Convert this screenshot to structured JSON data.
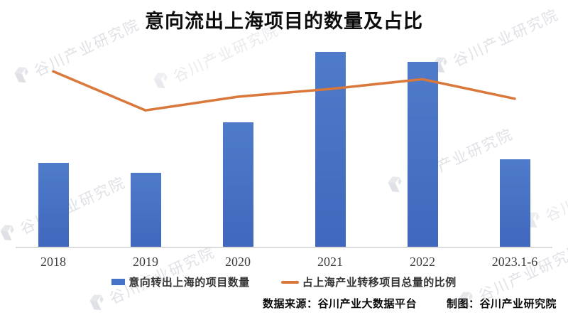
{
  "watermark": {
    "text": "谷川产业研究院",
    "logo_color": "#c9cdd6"
  },
  "footer": {
    "data_source": "数据来源：谷川产业大数据平台",
    "credit": "制图：谷川产业研究院"
  },
  "colors": {
    "bar": "#4472C4",
    "line": "#D9783A",
    "axis": "#DCDCDC",
    "watermark": "#C6CAD3",
    "title_text": "#0D0D0D",
    "xlabel_text": "#3F3F3F",
    "legend_text": "#333333"
  },
  "chart_data": {
    "type": "combo_bar_line",
    "title": "意向流出上海项目的数量及占比",
    "categories": [
      "2018",
      "2019",
      "2020",
      "2021",
      "2022",
      "2023.1-6"
    ],
    "series": [
      {
        "name": "意向转出上海的项目数量",
        "type": "bar",
        "color": "#4472C4",
        "values_relative_pct": [
          43,
          38,
          64,
          100,
          95,
          45
        ]
      },
      {
        "name": "占上海产业转移项目总量的比例",
        "type": "line",
        "color": "#D9783A",
        "values_relative_pct": [
          90,
          70,
          77,
          81,
          86,
          76
        ]
      }
    ],
    "value_labels_shown": false,
    "y_axis_ticks_shown": false,
    "legend_position": "bottom",
    "note": "source image shows no numeric axis or data labels; values are relative heights with the 2021 bar = 100"
  }
}
